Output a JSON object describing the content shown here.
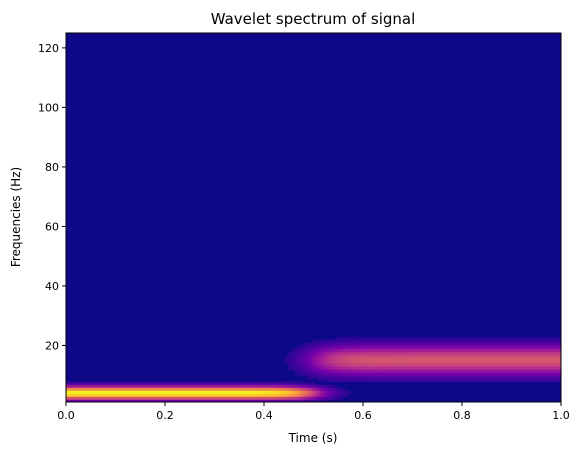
{
  "chart_data": {
    "type": "heatmap",
    "title": "Wavelet spectrum of signal",
    "xlabel": "Time (s)",
    "ylabel": "Frequencies (Hz)",
    "xlim": [
      0,
      1
    ],
    "ylim": [
      1,
      125
    ],
    "x_ticks": [
      0.0,
      0.2,
      0.4,
      0.6,
      0.8,
      1.0
    ],
    "x_tick_labels": [
      "0.0",
      "0.2",
      "0.4",
      "0.6",
      "0.8",
      "1.0"
    ],
    "y_ticks": [
      20,
      40,
      60,
      80,
      100,
      120
    ],
    "y_tick_labels": [
      "20",
      "40",
      "60",
      "80",
      "100",
      "120"
    ],
    "colormap": "plasma",
    "grid": false,
    "colorbar": false,
    "bands": [
      {
        "t_start": 0.0,
        "t_end": 0.5,
        "freq_hz": 4,
        "relative_power": 1.0
      },
      {
        "t_start": 0.5,
        "t_end": 1.0,
        "freq_hz": 15,
        "relative_power": 0.55
      }
    ]
  },
  "colors": {
    "background": "#0d0887",
    "stops": [
      "#0d0887",
      "#46039f",
      "#7201a8",
      "#9c179e",
      "#bd3786",
      "#d8576b",
      "#ed7953",
      "#fb9f3a",
      "#fdca26",
      "#f0f921"
    ]
  }
}
